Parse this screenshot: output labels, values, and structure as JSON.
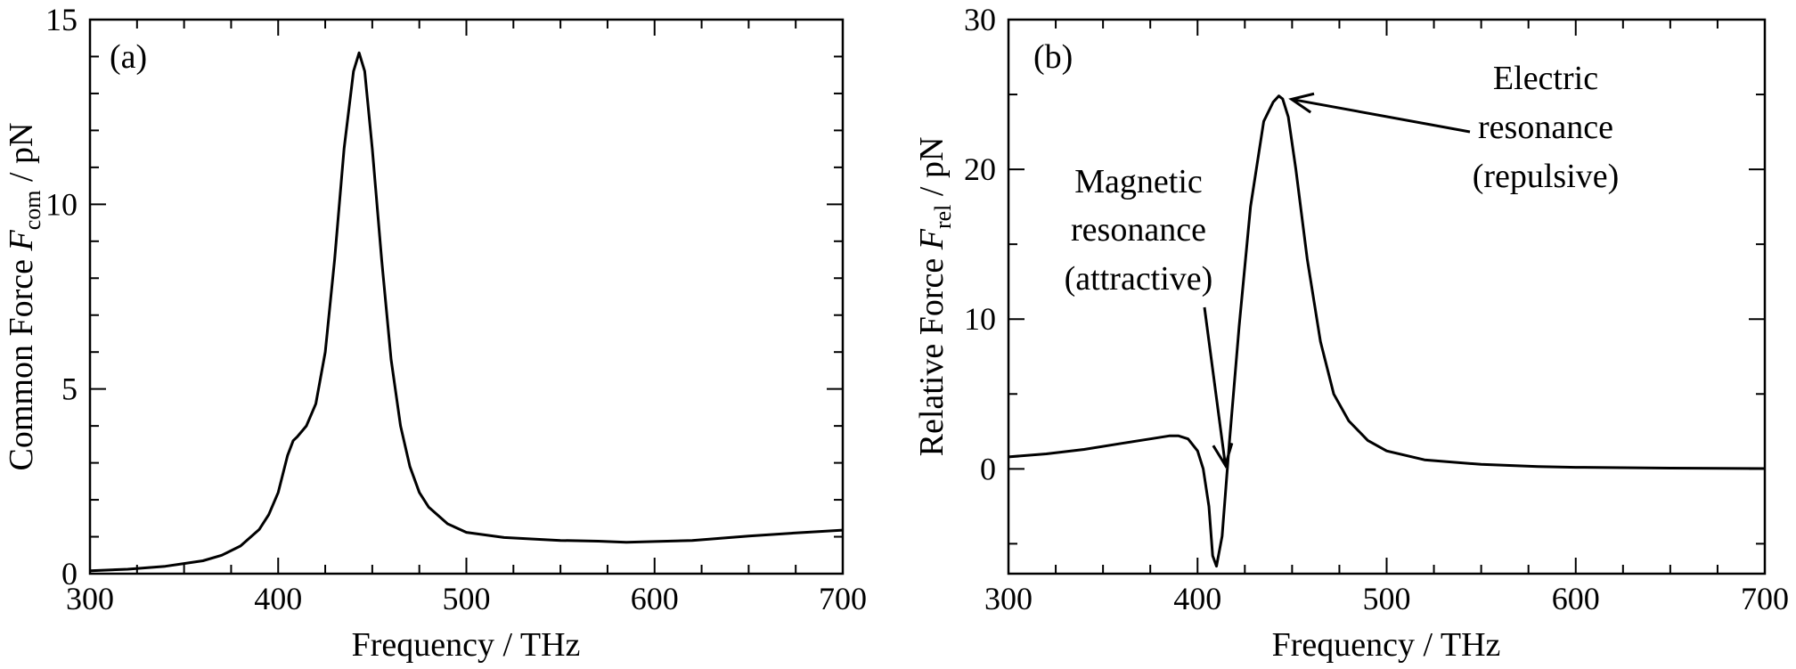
{
  "chart_data": [
    {
      "type": "line",
      "panel_label": "(a)",
      "title": "",
      "xlabel": "Frequency / THz",
      "ylabel": {
        "prefix": "Common Force ",
        "symbol": "F",
        "subscript": "com",
        "suffix": " / pN"
      },
      "xlim": [
        300,
        700
      ],
      "ylim": [
        0,
        15
      ],
      "xticks": [
        300,
        400,
        500,
        600,
        700
      ],
      "yticks": [
        0,
        5,
        10,
        15
      ],
      "xticks_minor": [
        325,
        350,
        375,
        425,
        450,
        475,
        525,
        550,
        575,
        625,
        650,
        675
      ],
      "yticks_minor": [
        1,
        2,
        3,
        4,
        6,
        7,
        8,
        9,
        11,
        12,
        13,
        14
      ],
      "grid": false,
      "series": [
        {
          "x": [
            300,
            320,
            340,
            360,
            370,
            380,
            390,
            395,
            400,
            405,
            408,
            410,
            415,
            420,
            425,
            430,
            435,
            440,
            443,
            446,
            450,
            455,
            460,
            465,
            470,
            475,
            480,
            490,
            500,
            520,
            550,
            570,
            585,
            600,
            620,
            650,
            680,
            700
          ],
          "y": [
            0.08,
            0.12,
            0.2,
            0.35,
            0.5,
            0.75,
            1.2,
            1.6,
            2.2,
            3.2,
            3.6,
            3.7,
            4.0,
            4.6,
            6.0,
            8.5,
            11.5,
            13.6,
            14.1,
            13.6,
            11.5,
            8.5,
            5.8,
            4.0,
            2.9,
            2.2,
            1.8,
            1.35,
            1.12,
            0.98,
            0.9,
            0.88,
            0.85,
            0.87,
            0.9,
            1.02,
            1.12,
            1.18
          ]
        }
      ]
    },
    {
      "type": "line",
      "panel_label": "(b)",
      "title": "",
      "xlabel": "Frequency / THz",
      "ylabel": {
        "prefix": "Relative Force ",
        "symbol": "F",
        "subscript": "rel",
        "suffix": " / pN"
      },
      "xlim": [
        300,
        700
      ],
      "ylim": [
        -7,
        30
      ],
      "xticks": [
        300,
        400,
        500,
        600,
        700
      ],
      "yticks": [
        0,
        10,
        20,
        30
      ],
      "xticks_minor": [
        325,
        350,
        375,
        425,
        450,
        475,
        525,
        550,
        575,
        625,
        650,
        675
      ],
      "yticks_minor": [
        -5,
        5,
        15,
        25
      ],
      "grid": false,
      "series": [
        {
          "x": [
            300,
            320,
            340,
            360,
            375,
            385,
            390,
            395,
            400,
            403,
            406,
            408,
            410,
            413,
            417,
            422,
            428,
            435,
            440,
            443,
            445,
            448,
            452,
            458,
            465,
            472,
            480,
            490,
            500,
            520,
            550,
            580,
            600,
            650,
            700
          ],
          "y": [
            0.8,
            1.0,
            1.3,
            1.7,
            2.0,
            2.2,
            2.2,
            2.0,
            1.2,
            0.0,
            -2.5,
            -5.8,
            -6.5,
            -4.5,
            2.0,
            9.5,
            17.5,
            23.2,
            24.5,
            24.9,
            24.7,
            23.5,
            20.0,
            14.0,
            8.5,
            5.0,
            3.2,
            1.9,
            1.2,
            0.6,
            0.3,
            0.15,
            0.1,
            0.05,
            0.02
          ]
        }
      ],
      "annotations": [
        {
          "lines": [
            "Magnetic",
            "resonance",
            "(attractive)"
          ],
          "points_to": [
            410,
            0.0
          ]
        },
        {
          "lines": [
            "Electric",
            "resonance",
            "(repulsive)"
          ],
          "points_to": [
            445,
            24.8
          ]
        }
      ]
    }
  ]
}
